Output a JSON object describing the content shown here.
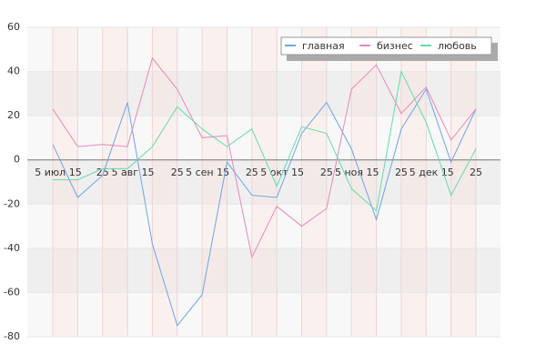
{
  "chart_data": {
    "type": "line",
    "categories": [
      "5 июл 15",
      null,
      "25",
      "5 авг 15",
      null,
      "25",
      "5 сен 15",
      null,
      "25",
      "5 окт 15",
      null,
      "25",
      "5 ноя 15",
      null,
      "25",
      "5 дек 15",
      null,
      "25"
    ],
    "series": [
      {
        "name": "главная",
        "color": "#6fa3e3",
        "values": [
          7,
          -17,
          -7,
          26,
          -38,
          -75,
          -61,
          -1,
          -16,
          -17,
          12,
          26,
          5,
          -27,
          14,
          32,
          -1,
          23
        ]
      },
      {
        "name": "бизнес",
        "color": "#ec86b8",
        "values": [
          23,
          6,
          7,
          6,
          46,
          32,
          10,
          11,
          -44,
          -21,
          -30,
          -22,
          32,
          43,
          21,
          33,
          9,
          23
        ]
      },
      {
        "name": "любовь",
        "color": "#62dca9",
        "values": [
          -9,
          -9,
          -4,
          -4,
          6,
          24,
          14,
          6,
          14,
          -12,
          15,
          12,
          -13,
          -23,
          40,
          17,
          -16,
          5
        ]
      }
    ],
    "ylim": [
      -80,
      60
    ],
    "yticks": [
      -80,
      -60,
      -40,
      -20,
      0,
      20,
      40,
      60
    ],
    "grid": true,
    "legend": "top-right"
  }
}
